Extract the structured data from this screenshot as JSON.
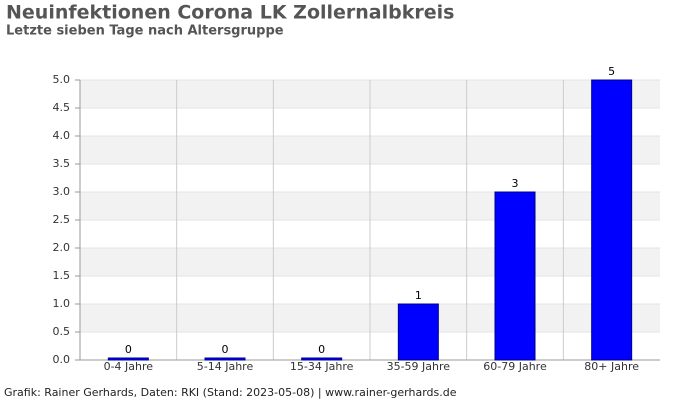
{
  "chart_data": {
    "type": "bar",
    "title": "Neuinfektionen Corona LK Zollernalbkreis",
    "subtitle": "Letzte sieben Tage nach Altersgruppe",
    "categories": [
      "0-4 Jahre",
      "5-14 Jahre",
      "15-34 Jahre",
      "35-59 Jahre",
      "60-79 Jahre",
      "80+ Jahre"
    ],
    "values": [
      0,
      0,
      0,
      1,
      3,
      5
    ],
    "color": "#0000ff",
    "ylim": [
      0,
      5
    ],
    "yticks": [
      {
        "value": 0,
        "label": "0.0"
      },
      {
        "value": 0.5,
        "label": "0.5"
      },
      {
        "value": 1,
        "label": "1.0"
      },
      {
        "value": 1.5,
        "label": "1.5"
      },
      {
        "value": 2,
        "label": "2.0"
      },
      {
        "value": 2.5,
        "label": "2.5"
      },
      {
        "value": 3,
        "label": "3.0"
      },
      {
        "value": 3.5,
        "label": "3.5"
      },
      {
        "value": 4,
        "label": "4.0"
      },
      {
        "value": 4.5,
        "label": "4.5"
      },
      {
        "value": 5,
        "label": "5.0"
      }
    ],
    "grid": true,
    "footer": "Grafik: Rainer Gerhards, Daten: RKI (Stand: 2023-05-08) | www.rainer-gerhards.de"
  }
}
